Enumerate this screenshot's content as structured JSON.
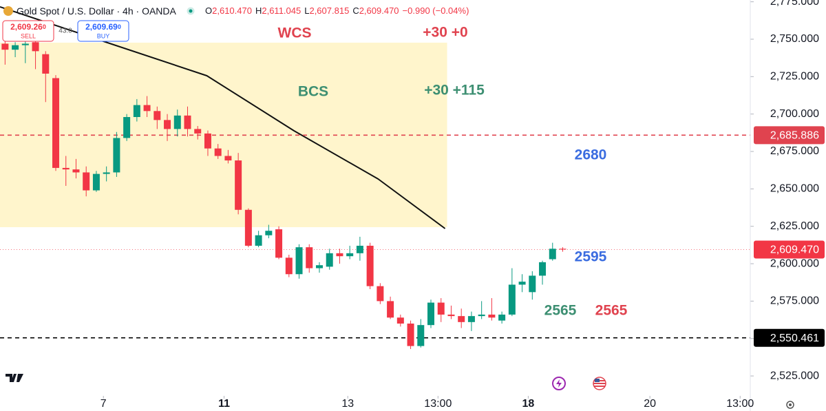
{
  "chart_data": {
    "type": "candlestick",
    "title": "Gold Spot / U.S. Dollar · 4h · OANDA",
    "ohlc": [
      {
        "label": "O",
        "value": "2,610.470"
      },
      {
        "label": "H",
        "value": "2,611.045"
      },
      {
        "label": "L",
        "value": "2,607.815"
      },
      {
        "label": "C",
        "value": "2,609.470"
      }
    ],
    "change": "−0.990 (−0.04%)",
    "sell": {
      "price": "2,609.26",
      "small": "0",
      "label": "SELL"
    },
    "buy": {
      "price": "2,609.69",
      "small": "0",
      "label": "BUY"
    },
    "spread": "43.0",
    "up_color": "#089981",
    "down_color": "#f23645",
    "x": [
      0,
      1,
      2,
      3,
      4,
      5,
      6,
      7,
      8,
      9,
      10,
      11,
      12,
      13,
      14,
      15,
      16,
      17,
      18,
      19,
      20,
      21,
      22,
      23,
      24,
      25,
      26,
      27,
      28,
      29,
      30,
      31,
      32,
      33,
      34,
      35,
      36,
      37,
      38,
      39,
      40,
      41,
      42,
      43,
      44,
      45,
      46,
      47,
      48,
      49,
      50,
      51,
      52,
      53,
      54,
      55
    ],
    "open": [
      2747,
      2743,
      2746,
      2748,
      2740,
      2724,
      2664,
      2663,
      2661,
      2649,
      2660,
      2661,
      2684,
      2698,
      2706,
      2702,
      2696,
      2690,
      2699,
      2690,
      2687,
      2677,
      2672,
      2669,
      2636,
      2612,
      2619,
      2623,
      2604,
      2593,
      2611,
      2597,
      2598,
      2607,
      2605,
      2607,
      2612,
      2585,
      2575,
      2564,
      2560,
      2545,
      2559,
      2574,
      2566,
      2565,
      2561,
      2565,
      2566,
      2562,
      2566,
      2586,
      2581,
      2592,
      2603,
      2610
    ],
    "high": [
      2752,
      2748,
      2750,
      2752,
      2742,
      2726,
      2672,
      2670,
      2665,
      2662,
      2665,
      2688,
      2700,
      2710,
      2712,
      2705,
      2700,
      2703,
      2705,
      2692,
      2689,
      2680,
      2676,
      2674,
      2637,
      2622,
      2626,
      2625,
      2606,
      2613,
      2613,
      2601,
      2610,
      2610,
      2612,
      2618,
      2614,
      2587,
      2578,
      2566,
      2562,
      2563,
      2576,
      2577,
      2572,
      2570,
      2568,
      2575,
      2577,
      2568,
      2597,
      2593,
      2595,
      2602,
      2614,
      2611
    ],
    "low": [
      2733,
      2738,
      2734,
      2730,
      2708,
      2662,
      2652,
      2657,
      2645,
      2648,
      2655,
      2658,
      2682,
      2695,
      2698,
      2690,
      2682,
      2685,
      2685,
      2683,
      2672,
      2670,
      2667,
      2633,
      2611,
      2611,
      2617,
      2603,
      2591,
      2590,
      2594,
      2594,
      2596,
      2600,
      2603,
      2602,
      2583,
      2573,
      2563,
      2558,
      2543,
      2544,
      2557,
      2561,
      2563,
      2557,
      2555,
      2563,
      2562,
      2560,
      2565,
      2581,
      2576,
      2586,
      2602,
      2608
    ],
    "close": [
      2743,
      2746,
      2747,
      2742,
      2727,
      2664,
      2663,
      2661,
      2649,
      2660,
      2661,
      2684,
      2698,
      2706,
      2702,
      2696,
      2690,
      2699,
      2690,
      2687,
      2677,
      2672,
      2669,
      2636,
      2612,
      2619,
      2622,
      2604,
      2593,
      2611,
      2597,
      2599,
      2607,
      2605,
      2607,
      2612,
      2585,
      2575,
      2564,
      2560,
      2545,
      2559,
      2574,
      2566,
      2565,
      2561,
      2565,
      2566,
      2564,
      2566,
      2586,
      2588,
      2592,
      2601,
      2610,
      2609.47
    ],
    "xlim": [
      -0.5,
      73.5
    ],
    "ylim": [
      2511.7,
      2776.2
    ],
    "xticks": [
      {
        "value": 9.7,
        "label": "7"
      },
      {
        "value": 21.6,
        "label": "11",
        "bold": true
      },
      {
        "value": 33.8,
        "label": "13"
      },
      {
        "value": 42.7,
        "label": "13:00"
      },
      {
        "value": 51.6,
        "label": "18",
        "bold": true
      },
      {
        "value": 63.6,
        "label": "20"
      },
      {
        "value": 72.5,
        "label": "13:00"
      }
    ],
    "yticks": [
      {
        "value": 2525,
        "label": "2,525.000"
      },
      {
        "value": 2550,
        "label": "2,550.000"
      },
      {
        "value": 2575,
        "label": "2,575.000"
      },
      {
        "value": 2600,
        "label": "2,600.000"
      },
      {
        "value": 2625,
        "label": "2,625.000"
      },
      {
        "value": 2650,
        "label": "2,650.000"
      },
      {
        "value": 2675,
        "label": "2,675.000"
      },
      {
        "value": 2700,
        "label": "2,700.000"
      },
      {
        "value": 2725,
        "label": "2,725.000"
      },
      {
        "value": 2750,
        "label": "2,750.000"
      },
      {
        "value": 2775,
        "label": "2,775.000"
      }
    ],
    "price_lines": [
      {
        "value": 2685.886,
        "label": "2,685.886",
        "color": "#e0434f",
        "style": "dashed"
      },
      {
        "value": 2550.461,
        "label": "2,550.461",
        "color": "#000000",
        "style": "dashed"
      },
      {
        "value": 2609.47,
        "label": "2,609.470",
        "color": "#f23645",
        "style": "dotted"
      }
    ],
    "zone": {
      "x": [
        -0.5,
        43.6
      ],
      "y": [
        2624.4,
        2747.7
      ],
      "color": "#fff5cc"
    },
    "curve": {
      "x": [
        -0.5,
        9.7,
        19.9,
        28.5,
        36.8,
        43.4
      ],
      "y": [
        2771.6,
        2748.6,
        2725.6,
        2688.8,
        2656.6,
        2623.5
      ],
      "color": "#111111"
    },
    "annotations": [
      {
        "text": "WCS",
        "color": "#e0434f"
      },
      {
        "text": "+30 +0",
        "color": "#e0434f"
      },
      {
        "text": "BCS",
        "color": "#3d8f72"
      },
      {
        "text": "+30 +115",
        "color": "#3d8f72"
      },
      {
        "text": "2680",
        "color": "#3b6de0"
      },
      {
        "text": "2595",
        "color": "#3b6de0"
      },
      {
        "text": "2565",
        "color": "#3d8f72"
      },
      {
        "text": "2565",
        "color": "#e0434f"
      }
    ]
  }
}
